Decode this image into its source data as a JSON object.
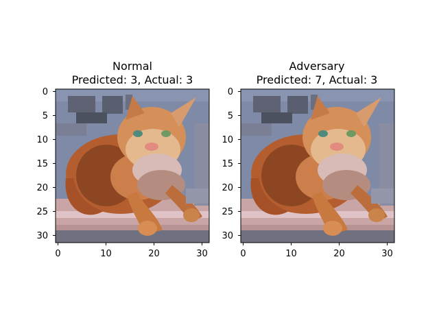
{
  "chart_data": [
    {
      "type": "image",
      "title_line1": "Normal",
      "title_line2": "Predicted: 3, Actual: 3",
      "xlim": [
        0,
        31
      ],
      "ylim": [
        31,
        0
      ],
      "xticks": [
        "0",
        "10",
        "20",
        "30"
      ],
      "yticks": [
        "0",
        "5",
        "10",
        "15",
        "20",
        "25",
        "30"
      ],
      "image_grid": [
        32,
        32
      ]
    },
    {
      "type": "image",
      "title_line1": "Adversary",
      "title_line2": "Predicted: 7, Actual: 3",
      "xlim": [
        0,
        31
      ],
      "ylim": [
        31,
        0
      ],
      "xticks": [
        "0",
        "10",
        "20",
        "30"
      ],
      "yticks": [
        "0",
        "5",
        "10",
        "15",
        "20",
        "25",
        "30"
      ],
      "image_grid": [
        32,
        32
      ]
    }
  ],
  "colors": {
    "background_blue": "#7f8aa6",
    "cat_orange": "#cf8a4d",
    "cat_dark": "#8c4722",
    "fur_light": "#e4b98e",
    "blanket_pink": "#c9a5a6",
    "chair_gray": "#707281",
    "eye_green": "#4f8a7d"
  }
}
